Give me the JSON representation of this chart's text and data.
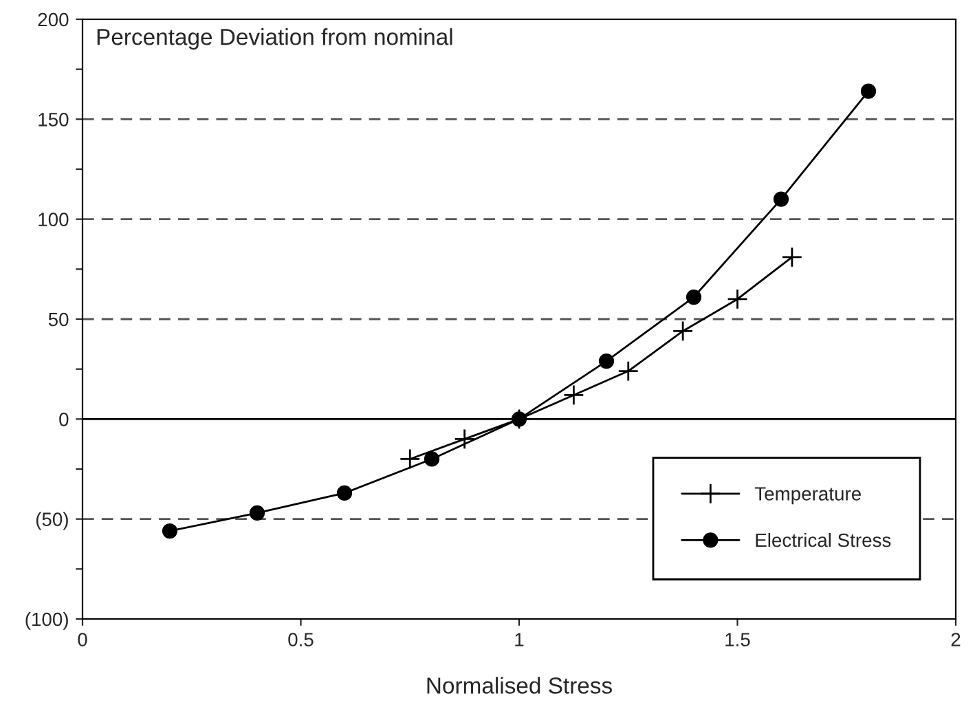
{
  "chart_data": {
    "type": "line",
    "title": "Percentage Deviation from nominal",
    "xlabel": "Normalised Stress",
    "xlim": [
      0,
      2
    ],
    "xticks": [
      0,
      0.5,
      1,
      1.5,
      2
    ],
    "ylim": [
      -100,
      200
    ],
    "yticks": [
      {
        "value": -100,
        "label": "(100)"
      },
      {
        "value": -75,
        "label": null
      },
      {
        "value": -50,
        "label": "(50)"
      },
      {
        "value": -25,
        "label": null
      },
      0,
      {
        "value": 25,
        "label": null
      },
      50,
      {
        "value": 75,
        "label": null
      },
      100,
      {
        "value": 125,
        "label": null
      },
      150,
      {
        "value": 175,
        "label": null
      },
      200
    ],
    "ref_lines": [
      {
        "axis": "y",
        "value": 150,
        "line_style": "dashed",
        "color": "#555555"
      },
      {
        "axis": "y",
        "value": 100,
        "line_style": "dashed",
        "color": "#555555"
      },
      {
        "axis": "y",
        "value": 50,
        "line_style": "dashed",
        "color": "#555555"
      },
      {
        "axis": "y",
        "value": -50,
        "line_style": "dashed",
        "color": "#555555"
      },
      {
        "axis": "y",
        "value": 0,
        "line_style": "solid",
        "color": "#000000"
      }
    ],
    "legend": "bottom right",
    "grid": false,
    "series": [
      {
        "name": "Temperature",
        "color": "#000000",
        "marker": "cross",
        "x": [
          0.75,
          0.875,
          1.0,
          1.125,
          1.25,
          1.375,
          1.5,
          1.625
        ],
        "values": [
          -20,
          -10,
          0,
          12,
          24,
          44,
          60,
          81
        ]
      },
      {
        "name": "Electrical Stress",
        "color": "#000000",
        "marker": "circle",
        "x": [
          0.2,
          0.4,
          0.6,
          0.8,
          1.0,
          1.2,
          1.4,
          1.6,
          1.8
        ],
        "values": [
          -56,
          -47,
          -37,
          -20,
          0,
          29,
          61,
          110,
          164
        ]
      }
    ]
  }
}
